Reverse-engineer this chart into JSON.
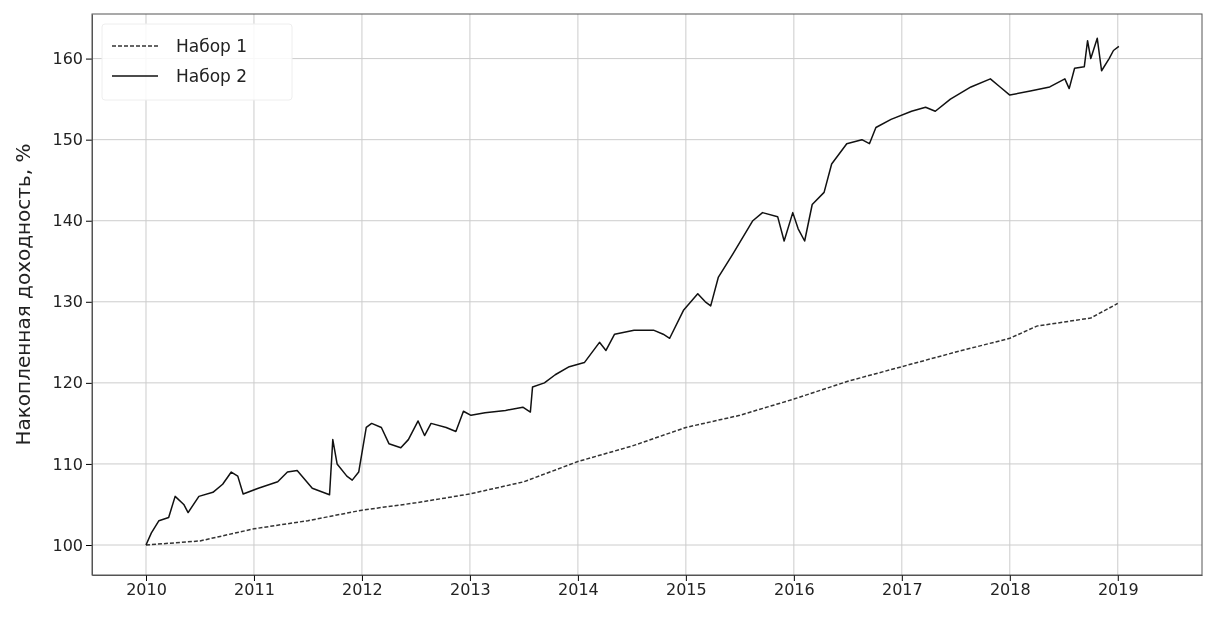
{
  "chart_data": {
    "type": "line",
    "ylabel": "Накопленная доходность, %",
    "xlim": [
      2009.5,
      2019.78
    ],
    "ylim": [
      96.3,
      165.5
    ],
    "xticks": [
      2010,
      2011,
      2012,
      2013,
      2014,
      2015,
      2016,
      2017,
      2018,
      2019
    ],
    "yticks": [
      100,
      110,
      120,
      130,
      140,
      150,
      160
    ],
    "grid": true,
    "legend": "top left",
    "marker": "none",
    "series": [
      {
        "name": "Набор 1",
        "color": "#333333",
        "line_style": "dashed",
        "x": [
          2010,
          2010.5,
          2011,
          2011.5,
          2012,
          2012.5,
          2013,
          2013.5,
          2014,
          2014.5,
          2015,
          2015.5,
          2016,
          2016.5,
          2017,
          2017.5,
          2018,
          2018.25,
          2018.75,
          2019
        ],
        "values": [
          100,
          100.5,
          102,
          103,
          104.3,
          105.2,
          106.3,
          107.8,
          110.3,
          112.2,
          114.5,
          116,
          118,
          120.2,
          122,
          123.8,
          125.5,
          127,
          128,
          129.8
        ]
      },
      {
        "name": "Набор 2",
        "color": "#111111",
        "line_style": "solid",
        "x": [
          2010,
          2010.05,
          2010.12,
          2010.21,
          2010.27,
          2010.35,
          2010.39,
          2010.49,
          2010.62,
          2010.71,
          2010.79,
          2010.85,
          2010.9,
          2011.04,
          2011.22,
          2011.31,
          2011.4,
          2011.54,
          2011.7,
          2011.73,
          2011.77,
          2011.86,
          2011.91,
          2011.97,
          2012.04,
          2012.09,
          2012.18,
          2012.25,
          2012.36,
          2012.43,
          2012.52,
          2012.58,
          2012.64,
          2012.78,
          2012.87,
          2012.94,
          2013.01,
          2013.14,
          2013.33,
          2013.49,
          2013.56,
          2013.58,
          2013.69,
          2013.79,
          2013.92,
          2014.06,
          2014.2,
          2014.26,
          2014.34,
          2014.52,
          2014.7,
          2014.79,
          2014.85,
          2014.98,
          2015.11,
          2015.18,
          2015.23,
          2015.3,
          2015.44,
          2015.53,
          2015.62,
          2015.71,
          2015.85,
          2015.91,
          2015.99,
          2016.04,
          2016.1,
          2016.17,
          2016.28,
          2016.35,
          2016.49,
          2016.63,
          2016.7,
          2016.76,
          2016.9,
          2017.09,
          2017.22,
          2017.31,
          2017.45,
          2017.64,
          2017.82,
          2017.91,
          2018,
          2018.19,
          2018.37,
          2018.51,
          2018.55,
          2018.6,
          2018.69,
          2018.72,
          2018.75,
          2018.81,
          2018.85,
          2018.92,
          2018.96,
          2019.01
        ],
        "values": [
          100,
          101.5,
          103,
          103.4,
          106,
          105,
          104,
          106,
          106.5,
          107.5,
          109,
          108.5,
          106.3,
          107,
          107.8,
          109,
          109.2,
          107,
          106.2,
          113,
          110,
          108.5,
          108,
          109,
          114.5,
          115,
          114.5,
          112.5,
          112,
          113,
          115.3,
          113.5,
          115,
          114.5,
          114,
          116.5,
          116,
          116.3,
          116.6,
          117,
          116.4,
          119.5,
          120,
          121,
          122,
          122.5,
          125,
          124,
          126,
          126.5,
          126.5,
          126,
          125.5,
          129,
          131,
          130,
          129.5,
          133,
          136,
          138,
          140,
          141,
          140.5,
          137.5,
          141,
          139,
          137.5,
          142,
          143.5,
          147,
          149.5,
          150,
          149.5,
          151.5,
          152.5,
          153.5,
          154,
          153.5,
          155,
          156.5,
          157.5,
          156.5,
          155.5,
          156,
          156.5,
          157.5,
          156.3,
          158.8,
          159,
          162.2,
          160,
          162.5,
          158.5,
          160,
          161,
          161.5
        ]
      }
    ]
  }
}
